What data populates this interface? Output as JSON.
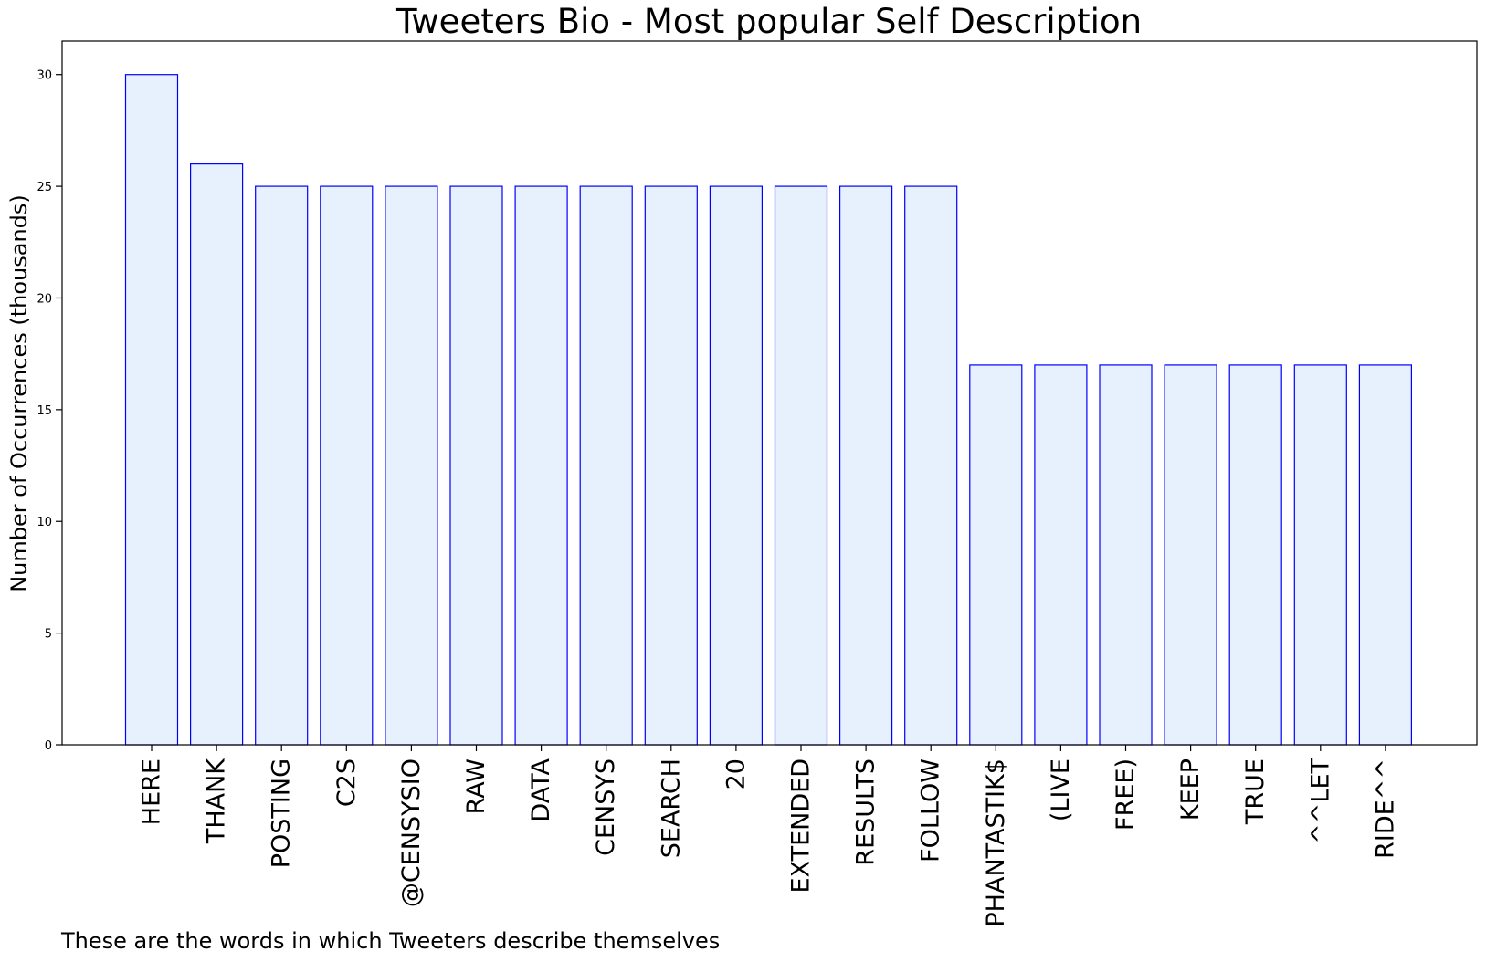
{
  "chart_data": {
    "type": "bar",
    "title": "Tweeters Bio - Most popular Self Description",
    "xlabel": "",
    "ylabel": "Number of Occurrences (thousands)",
    "caption": "These are the words in which Tweeters describe themselves",
    "categories": [
      "HERE",
      "THANK",
      "POSTING",
      "C2S",
      "@CENSYSIO",
      "RAW",
      "DATA",
      "CENSYS",
      "SEARCH",
      "20",
      "EXTENDED",
      "RESULTS",
      "FOLLOW",
      "PHANTASTIK$",
      "(LIVE",
      "FREE)",
      "KEEP",
      "TRUE",
      "^^LET",
      "RIDE^^"
    ],
    "values": [
      30,
      26,
      25,
      25,
      25,
      25,
      25,
      25,
      25,
      25,
      25,
      25,
      25,
      17,
      17,
      17,
      17,
      17,
      17,
      17
    ],
    "ylim": [
      0,
      31.5
    ],
    "yticks": [
      0,
      5,
      10,
      15,
      20,
      25,
      30
    ],
    "grid": false,
    "legend": "none",
    "colors": {
      "bar_fill": "#e6f1fd",
      "bar_edge": "#0000ff",
      "axis": "#000000"
    }
  }
}
